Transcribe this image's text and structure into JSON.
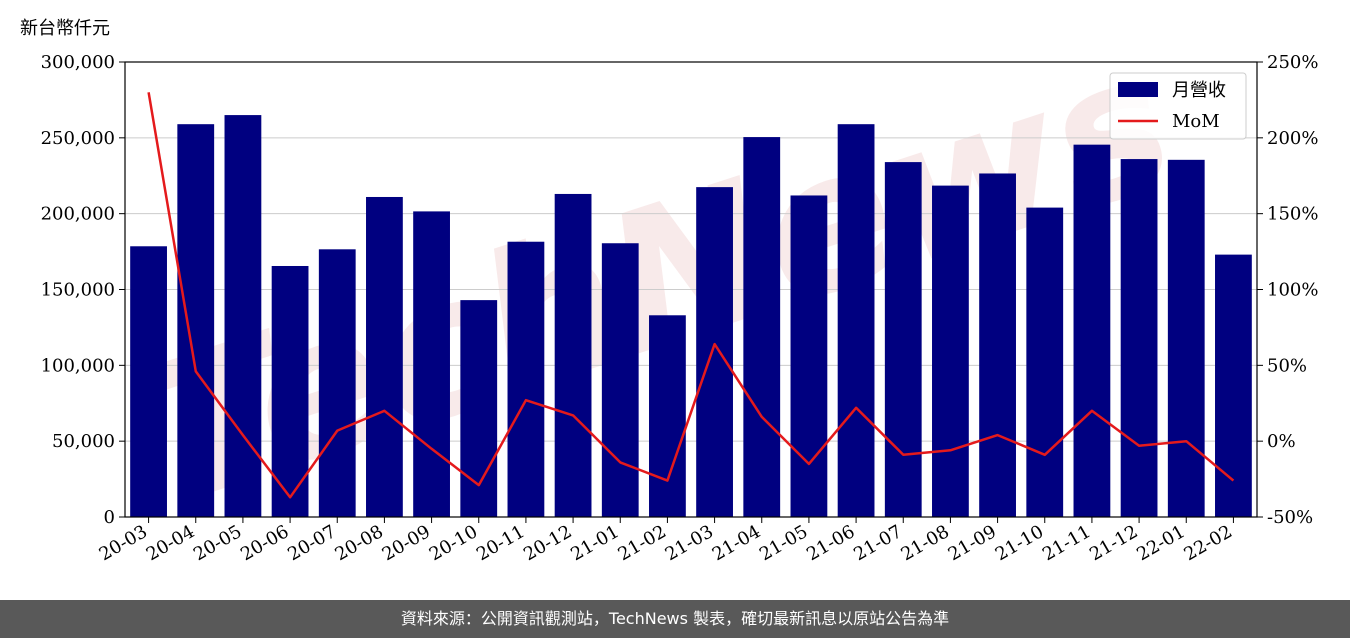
{
  "chart_data": {
    "type": "bar",
    "title": "",
    "y_unit_label": "新台幣仟元",
    "categories": [
      "20-03",
      "20-04",
      "20-05",
      "20-06",
      "20-07",
      "20-08",
      "20-09",
      "20-10",
      "20-11",
      "20-12",
      "21-01",
      "21-02",
      "21-03",
      "21-04",
      "21-05",
      "21-06",
      "21-07",
      "21-08",
      "21-09",
      "21-10",
      "21-11",
      "21-12",
      "22-01",
      "22-02"
    ],
    "series": [
      {
        "name": "月營收",
        "type": "bar",
        "axis": "left",
        "color": "#000080",
        "values": [
          178500,
          259000,
          265000,
          165500,
          176500,
          211000,
          201500,
          143000,
          181500,
          213000,
          180500,
          133000,
          217500,
          250500,
          212000,
          259000,
          234000,
          218500,
          226500,
          204000,
          245500,
          236000,
          235500,
          173000
        ]
      },
      {
        "name": "MoM",
        "type": "line",
        "axis": "right",
        "color": "#e41a1c",
        "values": [
          230,
          46,
          4,
          -37,
          7,
          20,
          -5,
          -29,
          27,
          17,
          -14,
          -26,
          64,
          16,
          -15,
          22,
          -9,
          -6,
          4,
          -9,
          20,
          -3,
          0,
          -26
        ]
      }
    ],
    "y_left": {
      "ylim": [
        0,
        300000
      ],
      "ticks": [
        0,
        50000,
        100000,
        150000,
        200000,
        250000,
        300000
      ],
      "tick_labels": [
        "0",
        "50,000",
        "100,000",
        "150,000",
        "200,000",
        "250,000",
        "300,000"
      ]
    },
    "y_right": {
      "ylim": [
        -50,
        250
      ],
      "ticks": [
        -50,
        0,
        50,
        100,
        150,
        200,
        250
      ],
      "tick_labels": [
        "-50%",
        "0%",
        "50%",
        "100%",
        "150%",
        "200%",
        "250%"
      ]
    },
    "grid": true,
    "legend": "top-right"
  },
  "footer_text": "資料來源：公開資訊觀測站，TechNews 製表，確切最新訊息以原站公告為準",
  "watermark": "TechNews"
}
